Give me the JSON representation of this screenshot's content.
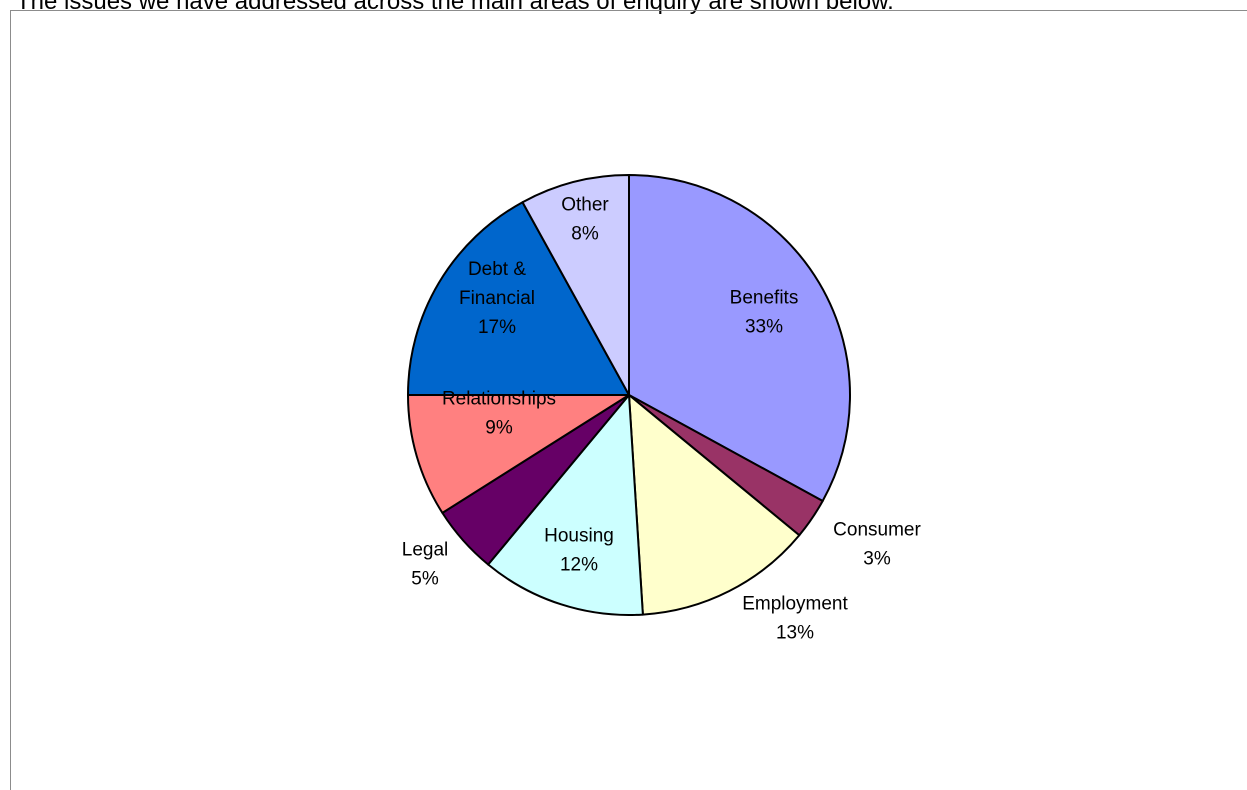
{
  "page": {
    "heading": "The issues we have addressed across the main areas of enquiry are shown below."
  },
  "chart_data": {
    "type": "pie",
    "title": "",
    "start": "top",
    "direction": "clockwise",
    "slices": [
      {
        "name": "Benefits",
        "value": 33,
        "label": "33%",
        "color": "#9999ff"
      },
      {
        "name": "Consumer",
        "value": 3,
        "label": "3%",
        "color": "#993366"
      },
      {
        "name": "Employment",
        "value": 13,
        "label": "13%",
        "color": "#ffffcc"
      },
      {
        "name": "Housing",
        "value": 12,
        "label": "12%",
        "color": "#ccffff"
      },
      {
        "name": "Legal",
        "value": 5,
        "label": "5%",
        "color": "#660066"
      },
      {
        "name": "Relationships",
        "value": 9,
        "label": "9%",
        "color": "#ff8080"
      },
      {
        "name": "Debt &\nFinancial",
        "value": 17,
        "label": "17%",
        "color": "#0066cc"
      },
      {
        "name": "Other",
        "value": 8,
        "label": "8%",
        "color": "#ccccff"
      }
    ]
  }
}
